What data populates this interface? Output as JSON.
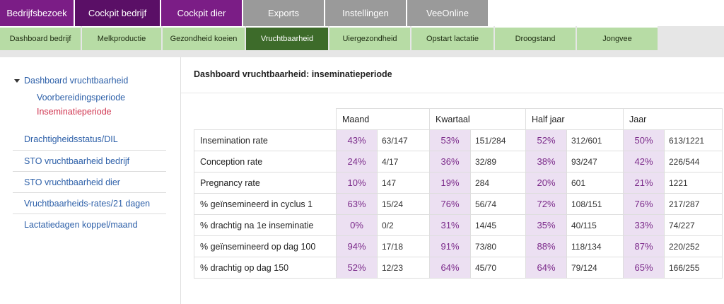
{
  "top_tabs": [
    {
      "label": "Bedrijfsbezoek",
      "style": "purple",
      "active": false
    },
    {
      "label": "Cockpit bedrijf",
      "style": "purple",
      "active": true
    },
    {
      "label": "Cockpit dier",
      "style": "purple",
      "active": false
    },
    {
      "label": "Exports",
      "style": "grey",
      "active": false
    },
    {
      "label": "Instellingen",
      "style": "grey",
      "active": false
    },
    {
      "label": "VeeOnline",
      "style": "grey",
      "active": false
    }
  ],
  "sub_tabs": [
    {
      "label": "Dashboard bedrijf",
      "active": false
    },
    {
      "label": "Melkproductie",
      "active": false
    },
    {
      "label": "Gezondheid koeien",
      "active": false
    },
    {
      "label": "Vruchtbaarheid",
      "active": true
    },
    {
      "label": "Uiergezondheid",
      "active": false
    },
    {
      "label": "Opstart lactatie",
      "active": false
    },
    {
      "label": "Droogstand",
      "active": false
    },
    {
      "label": "Jongvee",
      "active": false
    }
  ],
  "sidebar": {
    "group_label": "Dashboard vruchtbaarheid",
    "sub_items": [
      {
        "label": "Voorbereidingsperiode",
        "active": false
      },
      {
        "label": "Inseminatieperiode",
        "active": true
      }
    ],
    "items": [
      {
        "label": "Drachtigheidsstatus/DIL"
      },
      {
        "label": "STO vruchtbaarheid bedrijf"
      },
      {
        "label": "STO vruchtbaarheid dier"
      },
      {
        "label": "Vruchtbaarheids-rates/21 dagen"
      },
      {
        "label": "Lactatiedagen koppel/maand"
      }
    ]
  },
  "main": {
    "title": "Dashboard vruchtbaarheid: inseminatieperiode",
    "periods": [
      "Maand",
      "Kwartaal",
      "Half jaar",
      "Jaar"
    ],
    "rows": [
      {
        "label": "Insemination rate",
        "values": [
          [
            "43%",
            "63/147"
          ],
          [
            "53%",
            "151/284"
          ],
          [
            "52%",
            "312/601"
          ],
          [
            "50%",
            "613/1221"
          ]
        ]
      },
      {
        "label": "Conception rate",
        "values": [
          [
            "24%",
            "4/17"
          ],
          [
            "36%",
            "32/89"
          ],
          [
            "38%",
            "93/247"
          ],
          [
            "42%",
            "226/544"
          ]
        ]
      },
      {
        "label": "Pregnancy rate",
        "values": [
          [
            "10%",
            "147"
          ],
          [
            "19%",
            "284"
          ],
          [
            "20%",
            "601"
          ],
          [
            "21%",
            "1221"
          ]
        ]
      },
      {
        "label": "% geïnsemineerd in cyclus 1",
        "values": [
          [
            "63%",
            "15/24"
          ],
          [
            "76%",
            "56/74"
          ],
          [
            "72%",
            "108/151"
          ],
          [
            "76%",
            "217/287"
          ]
        ]
      },
      {
        "label": "% drachtig na 1e inseminatie",
        "values": [
          [
            "0%",
            "0/2"
          ],
          [
            "31%",
            "14/45"
          ],
          [
            "35%",
            "40/115"
          ],
          [
            "33%",
            "74/227"
          ]
        ]
      },
      {
        "label": "% geïnsemineerd op dag 100",
        "values": [
          [
            "94%",
            "17/18"
          ],
          [
            "91%",
            "73/80"
          ],
          [
            "88%",
            "118/134"
          ],
          [
            "87%",
            "220/252"
          ]
        ]
      },
      {
        "label": "% drachtig op dag 150",
        "values": [
          [
            "52%",
            "12/23"
          ],
          [
            "64%",
            "45/70"
          ],
          [
            "64%",
            "79/124"
          ],
          [
            "65%",
            "166/255"
          ]
        ]
      }
    ]
  },
  "colors": {
    "purple_tab": "#7b1d86",
    "grey_tab": "#9a9a9a",
    "green_tab": "#b7dca5",
    "green_tab_active": "#3d6b2a",
    "link_blue": "#2c5fa8",
    "active_red": "#d0344f",
    "pct_bg": "#ece0f2"
  }
}
